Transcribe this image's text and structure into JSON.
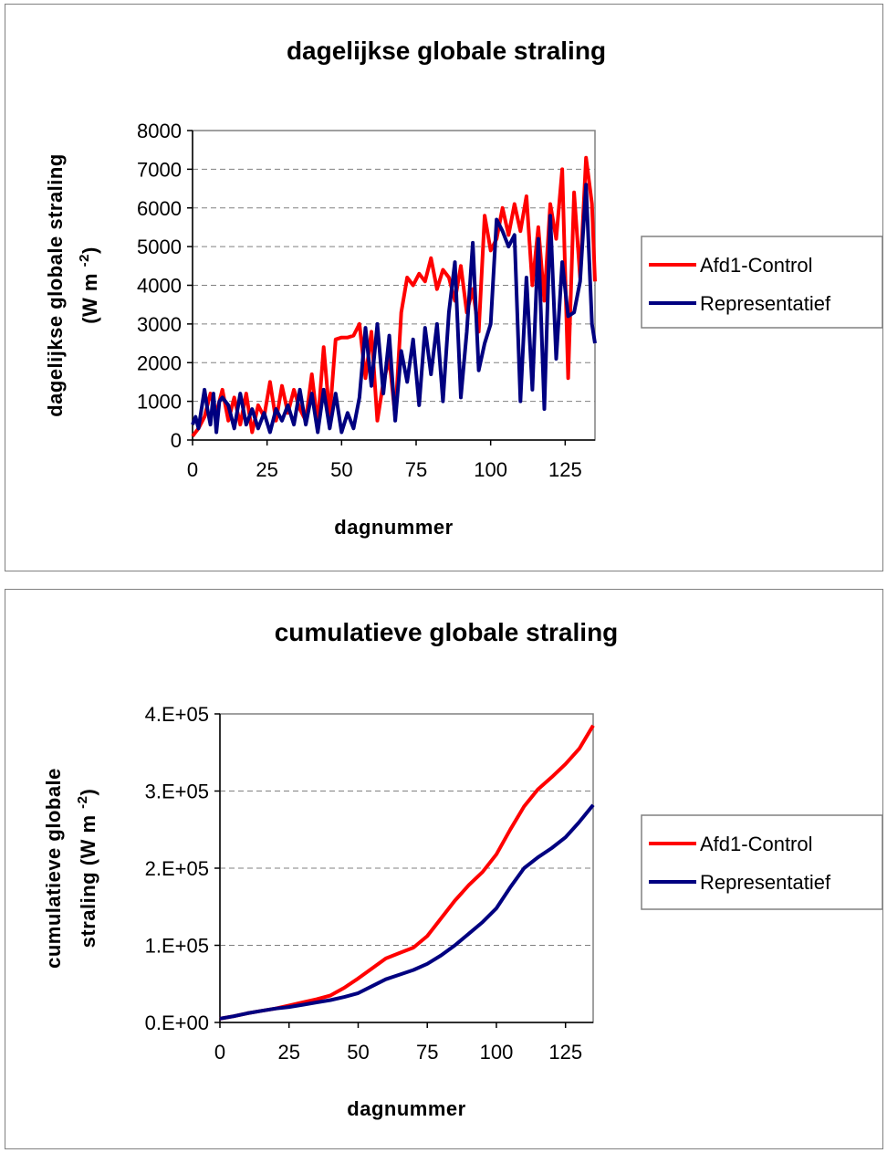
{
  "chart_data": [
    {
      "type": "line",
      "title": "dagelijkse globale straling",
      "xlabel": "dagnummer",
      "ylabel_line1": "dagelijkse globale straling",
      "ylabel_line2": "(W m",
      "ylabel_sup": "-2",
      "ylabel_close": ")",
      "xlim": [
        0,
        135
      ],
      "ylim": [
        0,
        8000
      ],
      "x_ticks": [
        "0",
        "25",
        "50",
        "75",
        "100",
        "125"
      ],
      "y_ticks": [
        "0",
        "1000",
        "2000",
        "3000",
        "4000",
        "5000",
        "6000",
        "7000",
        "8000"
      ],
      "grid": "horizontal dashed",
      "legend_position": "right",
      "series": [
        {
          "name": "Afd1-Control",
          "color": "#ff0000",
          "x": [
            0,
            2,
            4,
            6,
            8,
            10,
            12,
            14,
            16,
            18,
            20,
            22,
            24,
            26,
            28,
            30,
            32,
            34,
            36,
            38,
            40,
            42,
            44,
            46,
            48,
            50,
            52,
            54,
            56,
            58,
            60,
            62,
            64,
            66,
            68,
            70,
            72,
            74,
            76,
            78,
            80,
            82,
            84,
            86,
            88,
            90,
            92,
            94,
            96,
            98,
            100,
            102,
            104,
            106,
            108,
            110,
            112,
            114,
            116,
            118,
            120,
            122,
            124,
            126,
            128,
            130,
            132,
            134,
            135
          ],
          "values": [
            100,
            300,
            600,
            1200,
            700,
            1300,
            500,
            1100,
            400,
            1200,
            200,
            900,
            600,
            1500,
            500,
            1400,
            700,
            1300,
            800,
            500,
            1700,
            400,
            2400,
            600,
            2600,
            2650,
            2650,
            2700,
            3000,
            1600,
            2800,
            500,
            1500,
            2100,
            600,
            3300,
            4200,
            4000,
            4300,
            4100,
            4700,
            3900,
            4400,
            4200,
            3600,
            4500,
            3300,
            3900,
            2800,
            5800,
            4900,
            5200,
            6000,
            5300,
            6100,
            5400,
            6300,
            4000,
            5500,
            3600,
            6100,
            5200,
            7000,
            1600,
            6400,
            4200,
            7300,
            6100,
            4100
          ]
        },
        {
          "name": "Representatief",
          "color": "#000080",
          "x": [
            0,
            1,
            2,
            3,
            4,
            5,
            6,
            7,
            8,
            9,
            10,
            12,
            14,
            16,
            18,
            20,
            22,
            24,
            26,
            28,
            30,
            32,
            34,
            36,
            38,
            40,
            42,
            44,
            46,
            48,
            50,
            52,
            54,
            56,
            58,
            60,
            62,
            64,
            66,
            68,
            70,
            72,
            74,
            76,
            78,
            80,
            82,
            84,
            86,
            88,
            90,
            92,
            94,
            96,
            98,
            100,
            102,
            104,
            106,
            108,
            110,
            112,
            114,
            116,
            118,
            120,
            122,
            124,
            126,
            128,
            130,
            132,
            134,
            135
          ],
          "values": [
            400,
            600,
            300,
            800,
            1300,
            800,
            400,
            1200,
            200,
            1000,
            1100,
            900,
            300,
            1200,
            400,
            800,
            300,
            700,
            200,
            800,
            500,
            900,
            400,
            1300,
            400,
            1200,
            200,
            1300,
            300,
            1200,
            200,
            700,
            300,
            1100,
            2900,
            1400,
            3000,
            1200,
            2700,
            500,
            2300,
            1500,
            2600,
            900,
            2900,
            1700,
            3000,
            1000,
            3300,
            4600,
            1100,
            2800,
            5100,
            1800,
            2500,
            3000,
            5700,
            5400,
            5000,
            5300,
            1000,
            4200,
            1300,
            5200,
            800,
            5800,
            2100,
            4600,
            3200,
            3300,
            4100,
            6600,
            3000,
            2500
          ]
        }
      ]
    },
    {
      "type": "line",
      "title": "cumulatieve  globale straling",
      "xlabel": "dagnummer",
      "ylabel_line1": "cumulatieve globale",
      "ylabel_line2": "straling (W m",
      "ylabel_sup": "-2",
      "ylabel_close": ")",
      "xlim": [
        0,
        135
      ],
      "ylim": [
        0,
        400000
      ],
      "x_ticks": [
        "0",
        "25",
        "50",
        "75",
        "100",
        "125"
      ],
      "y_ticks": [
        "0.E+00",
        "1.E+05",
        "2.E+05",
        "3.E+05",
        "4.E+05"
      ],
      "grid": "horizontal dashed",
      "legend_position": "right",
      "series": [
        {
          "name": "Afd1-Control",
          "color": "#ff0000",
          "x": [
            0,
            5,
            10,
            15,
            20,
            25,
            30,
            35,
            40,
            45,
            50,
            55,
            60,
            65,
            70,
            75,
            80,
            85,
            90,
            95,
            100,
            105,
            110,
            115,
            120,
            125,
            130,
            135
          ],
          "values": [
            5000,
            8000,
            12000,
            15000,
            18000,
            22000,
            26000,
            30000,
            35000,
            45000,
            57000,
            70000,
            83000,
            90000,
            97000,
            112000,
            135000,
            158000,
            178000,
            195000,
            218000,
            250000,
            280000,
            302000,
            318000,
            335000,
            355000,
            385000
          ]
        },
        {
          "name": "Representatief",
          "color": "#000080",
          "x": [
            0,
            5,
            10,
            15,
            20,
            25,
            30,
            35,
            40,
            45,
            50,
            55,
            60,
            65,
            70,
            75,
            80,
            85,
            90,
            95,
            100,
            105,
            110,
            115,
            120,
            125,
            130,
            135
          ],
          "values": [
            5000,
            8000,
            12000,
            15000,
            18000,
            20000,
            23000,
            26000,
            29000,
            33000,
            38000,
            47000,
            56000,
            62000,
            68000,
            76000,
            87000,
            100000,
            115000,
            130000,
            148000,
            175000,
            200000,
            214000,
            226000,
            240000,
            260000,
            282000
          ]
        }
      ]
    }
  ]
}
